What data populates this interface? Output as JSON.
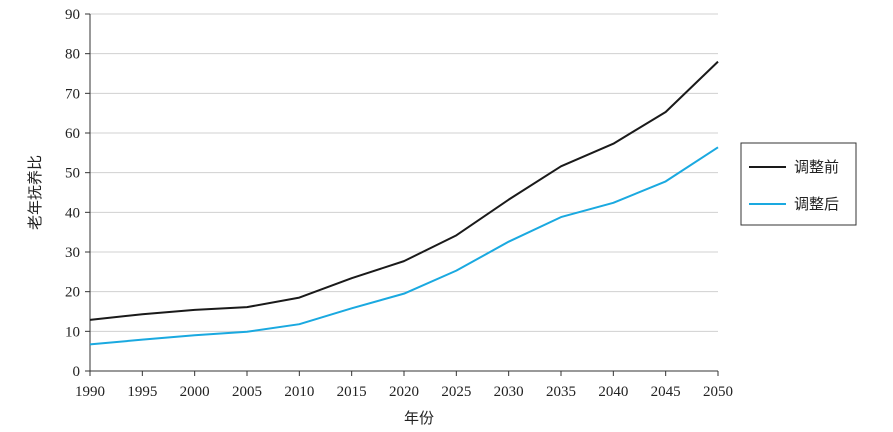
{
  "chart_data": {
    "type": "line",
    "title": "",
    "xlabel": "年份",
    "ylabel": "老年抚养比",
    "x": [
      1990,
      1995,
      2000,
      2005,
      2010,
      2015,
      2020,
      2025,
      2030,
      2035,
      2040,
      2045,
      2050
    ],
    "xlim": [
      1990,
      2050
    ],
    "ylim": [
      0,
      90
    ],
    "yticks": [
      0,
      10,
      20,
      30,
      40,
      50,
      60,
      70,
      80,
      90
    ],
    "grid": true,
    "legend_position": "right",
    "series": [
      {
        "name": "调整前",
        "color": "#1a1a1a",
        "values": [
          12.9,
          14.3,
          15.4,
          16.1,
          18.5,
          23.4,
          27.7,
          34.2,
          43.2,
          51.6,
          57.3,
          65.3,
          78.0
        ]
      },
      {
        "name": "调整后",
        "color": "#1aa9e0",
        "values": [
          6.7,
          7.9,
          9.0,
          9.9,
          11.8,
          15.8,
          19.5,
          25.3,
          32.6,
          38.8,
          42.4,
          47.8,
          56.4
        ]
      }
    ]
  }
}
